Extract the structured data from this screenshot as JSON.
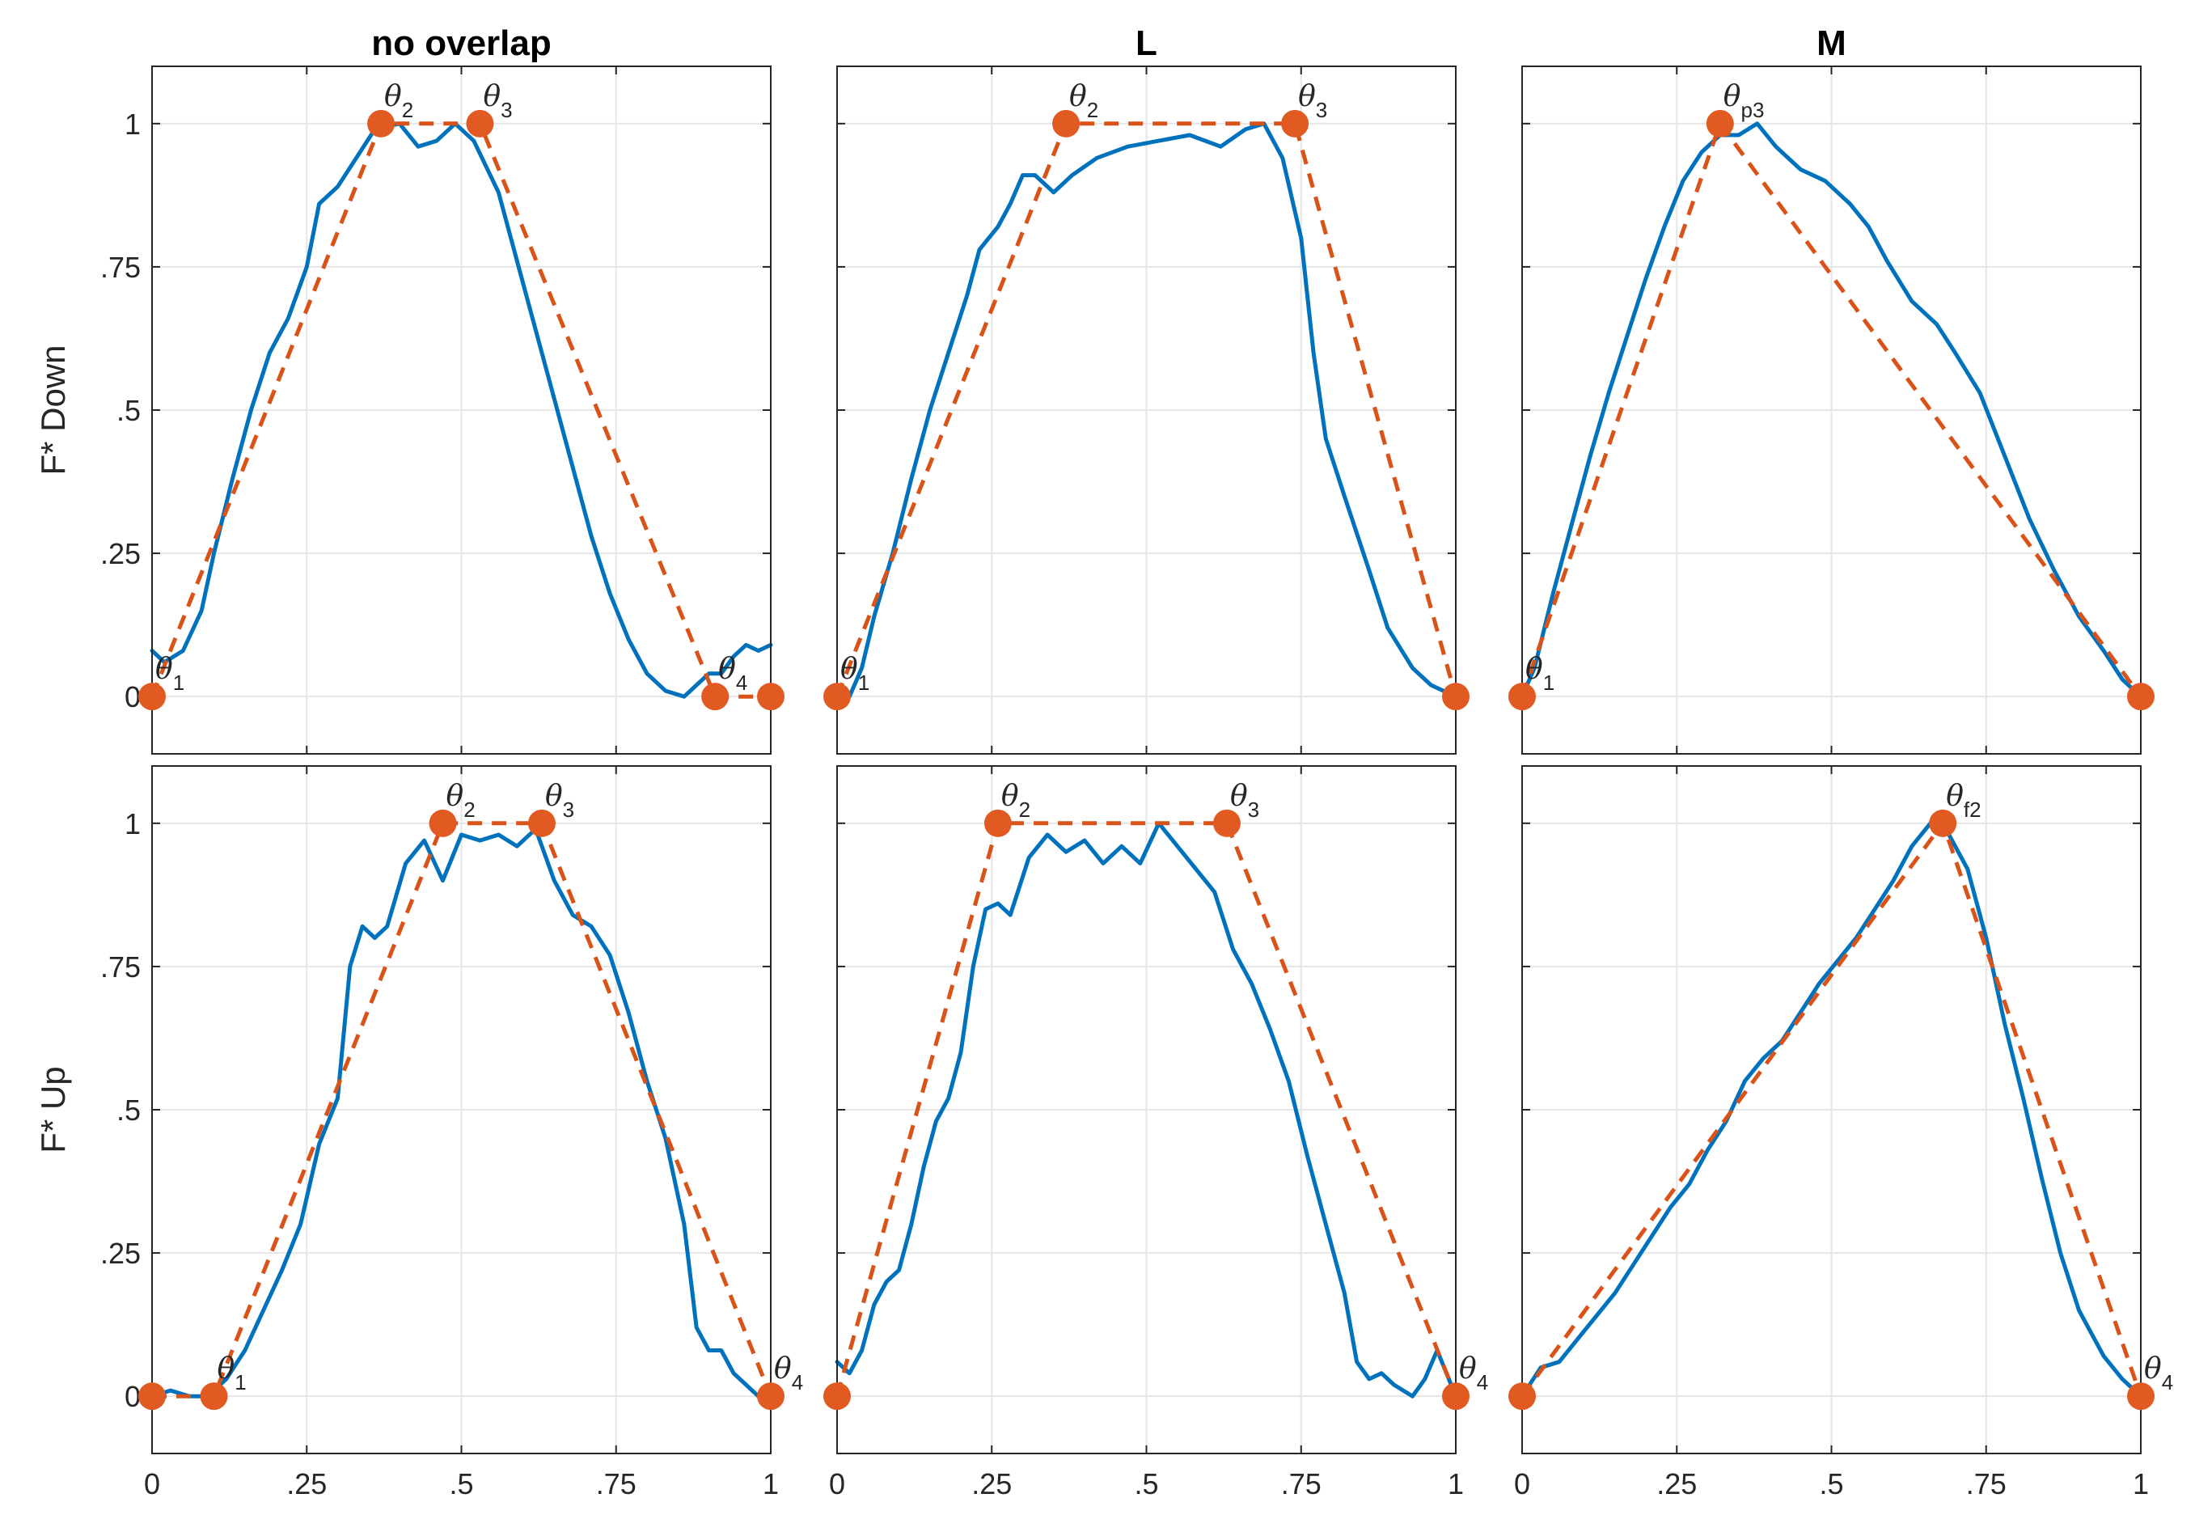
{
  "chart_data": {
    "type": "line",
    "layout": "grid 2 rows x 3 columns",
    "column_titles": [
      "no overlap",
      "L",
      "M"
    ],
    "row_labels": [
      "F* Down",
      "F* Up"
    ],
    "x_ticks": [
      0,
      0.25,
      0.5,
      0.75,
      1
    ],
    "x_tick_labels": [
      "0",
      ".25",
      ".5",
      ".75",
      "1"
    ],
    "y_ticks": [
      0,
      0.25,
      0.5,
      0.75,
      1
    ],
    "y_tick_labels": [
      "0",
      ".25",
      ".5",
      ".75",
      "1"
    ],
    "xlim": [
      0,
      1
    ],
    "ylim": [
      -0.1,
      1.1
    ],
    "grid": true,
    "colors": {
      "empirical": "#0072BD",
      "model": "#D95319",
      "marker": "#E15A21"
    },
    "panels": [
      {
        "row": "F* Down",
        "column": "no overlap",
        "empirical": [
          [
            0,
            0.08
          ],
          [
            0.02,
            0.06
          ],
          [
            0.05,
            0.08
          ],
          [
            0.08,
            0.15
          ],
          [
            0.1,
            0.25
          ],
          [
            0.13,
            0.38
          ],
          [
            0.16,
            0.5
          ],
          [
            0.19,
            0.6
          ],
          [
            0.22,
            0.66
          ],
          [
            0.25,
            0.75
          ],
          [
            0.27,
            0.86
          ],
          [
            0.3,
            0.89
          ],
          [
            0.33,
            0.94
          ],
          [
            0.36,
            0.99
          ],
          [
            0.4,
            1.0
          ],
          [
            0.43,
            0.96
          ],
          [
            0.46,
            0.97
          ],
          [
            0.49,
            1.0
          ],
          [
            0.52,
            0.97
          ],
          [
            0.56,
            0.88
          ],
          [
            0.6,
            0.72
          ],
          [
            0.64,
            0.56
          ],
          [
            0.68,
            0.4
          ],
          [
            0.71,
            0.28
          ],
          [
            0.74,
            0.18
          ],
          [
            0.77,
            0.1
          ],
          [
            0.8,
            0.04
          ],
          [
            0.83,
            0.01
          ],
          [
            0.86,
            0.0
          ],
          [
            0.88,
            0.02
          ],
          [
            0.9,
            0.04
          ],
          [
            0.92,
            0.04
          ],
          [
            0.94,
            0.07
          ],
          [
            0.96,
            0.09
          ],
          [
            0.98,
            0.08
          ],
          [
            1,
            0.09
          ]
        ],
        "model": [
          [
            0,
            0
          ],
          [
            0.37,
            1
          ],
          [
            0.53,
            1
          ],
          [
            0.91,
            0
          ],
          [
            1,
            0
          ]
        ],
        "markers": [
          {
            "x": 0,
            "y": 0,
            "label": "θ",
            "subscript": "1"
          },
          {
            "x": 0.37,
            "y": 1,
            "label": "θ",
            "subscript": "2"
          },
          {
            "x": 0.53,
            "y": 1,
            "label": "θ",
            "subscript": "3"
          },
          {
            "x": 0.91,
            "y": 0,
            "label": "θ",
            "subscript": "4"
          },
          {
            "x": 1,
            "y": 0,
            "label": "",
            "subscript": ""
          }
        ]
      },
      {
        "row": "F* Down",
        "column": "L",
        "empirical": [
          [
            0,
            0.0
          ],
          [
            0.02,
            0.0
          ],
          [
            0.04,
            0.05
          ],
          [
            0.06,
            0.14
          ],
          [
            0.09,
            0.25
          ],
          [
            0.12,
            0.38
          ],
          [
            0.15,
            0.5
          ],
          [
            0.18,
            0.6
          ],
          [
            0.21,
            0.7
          ],
          [
            0.23,
            0.78
          ],
          [
            0.26,
            0.82
          ],
          [
            0.28,
            0.86
          ],
          [
            0.3,
            0.91
          ],
          [
            0.32,
            0.91
          ],
          [
            0.35,
            0.88
          ],
          [
            0.38,
            0.91
          ],
          [
            0.42,
            0.94
          ],
          [
            0.47,
            0.96
          ],
          [
            0.52,
            0.97
          ],
          [
            0.57,
            0.98
          ],
          [
            0.62,
            0.96
          ],
          [
            0.66,
            0.99
          ],
          [
            0.69,
            1.0
          ],
          [
            0.72,
            0.94
          ],
          [
            0.75,
            0.8
          ],
          [
            0.77,
            0.6
          ],
          [
            0.79,
            0.45
          ],
          [
            0.82,
            0.35
          ],
          [
            0.86,
            0.22
          ],
          [
            0.89,
            0.12
          ],
          [
            0.93,
            0.05
          ],
          [
            0.96,
            0.02
          ],
          [
            1,
            0.0
          ]
        ],
        "model": [
          [
            0,
            0
          ],
          [
            0.37,
            1
          ],
          [
            0.74,
            1
          ],
          [
            1,
            0
          ]
        ],
        "markers": [
          {
            "x": 0,
            "y": 0,
            "label": "θ",
            "subscript": "1"
          },
          {
            "x": 0.37,
            "y": 1,
            "label": "θ",
            "subscript": "2"
          },
          {
            "x": 0.74,
            "y": 1,
            "label": "θ",
            "subscript": "3"
          },
          {
            "x": 1,
            "y": 0,
            "label": "",
            "subscript": ""
          }
        ]
      },
      {
        "row": "F* Down",
        "column": "M",
        "empirical": [
          [
            0,
            0.0
          ],
          [
            0.02,
            0.05
          ],
          [
            0.05,
            0.18
          ],
          [
            0.08,
            0.3
          ],
          [
            0.11,
            0.42
          ],
          [
            0.14,
            0.53
          ],
          [
            0.17,
            0.63
          ],
          [
            0.2,
            0.73
          ],
          [
            0.23,
            0.82
          ],
          [
            0.26,
            0.9
          ],
          [
            0.29,
            0.95
          ],
          [
            0.32,
            0.98
          ],
          [
            0.35,
            0.98
          ],
          [
            0.38,
            1.0
          ],
          [
            0.41,
            0.96
          ],
          [
            0.45,
            0.92
          ],
          [
            0.49,
            0.9
          ],
          [
            0.53,
            0.86
          ],
          [
            0.56,
            0.82
          ],
          [
            0.59,
            0.76
          ],
          [
            0.63,
            0.69
          ],
          [
            0.67,
            0.65
          ],
          [
            0.7,
            0.6
          ],
          [
            0.74,
            0.53
          ],
          [
            0.78,
            0.42
          ],
          [
            0.82,
            0.31
          ],
          [
            0.86,
            0.22
          ],
          [
            0.9,
            0.14
          ],
          [
            0.94,
            0.08
          ],
          [
            0.97,
            0.03
          ],
          [
            1,
            0.0
          ]
        ],
        "model": [
          [
            0,
            0
          ],
          [
            0.32,
            1
          ],
          [
            1,
            0
          ]
        ],
        "markers": [
          {
            "x": 0,
            "y": 0,
            "label": "θ",
            "subscript": "1"
          },
          {
            "x": 0.32,
            "y": 1,
            "label": "θ",
            "subscript": "p3"
          },
          {
            "x": 1,
            "y": 0,
            "label": "",
            "subscript": ""
          }
        ]
      },
      {
        "row": "F* Up",
        "column": "no overlap",
        "empirical": [
          [
            0,
            0.0
          ],
          [
            0.03,
            0.01
          ],
          [
            0.06,
            0.0
          ],
          [
            0.09,
            0.0
          ],
          [
            0.12,
            0.03
          ],
          [
            0.15,
            0.08
          ],
          [
            0.18,
            0.15
          ],
          [
            0.21,
            0.22
          ],
          [
            0.24,
            0.3
          ],
          [
            0.27,
            0.44
          ],
          [
            0.3,
            0.52
          ],
          [
            0.32,
            0.75
          ],
          [
            0.34,
            0.82
          ],
          [
            0.36,
            0.8
          ],
          [
            0.38,
            0.82
          ],
          [
            0.41,
            0.93
          ],
          [
            0.44,
            0.97
          ],
          [
            0.47,
            0.9
          ],
          [
            0.5,
            0.98
          ],
          [
            0.53,
            0.97
          ],
          [
            0.56,
            0.98
          ],
          [
            0.59,
            0.96
          ],
          [
            0.62,
            0.99
          ],
          [
            0.65,
            0.9
          ],
          [
            0.68,
            0.84
          ],
          [
            0.71,
            0.82
          ],
          [
            0.74,
            0.77
          ],
          [
            0.77,
            0.67
          ],
          [
            0.8,
            0.55
          ],
          [
            0.83,
            0.45
          ],
          [
            0.86,
            0.3
          ],
          [
            0.88,
            0.12
          ],
          [
            0.9,
            0.08
          ],
          [
            0.92,
            0.08
          ],
          [
            0.94,
            0.04
          ],
          [
            0.96,
            0.02
          ],
          [
            0.98,
            0.0
          ],
          [
            1,
            0.0
          ]
        ],
        "model": [
          [
            0,
            0
          ],
          [
            0.1,
            0
          ],
          [
            0.47,
            1
          ],
          [
            0.63,
            1
          ],
          [
            1,
            0
          ]
        ],
        "markers": [
          {
            "x": 0,
            "y": 0,
            "label": "",
            "subscript": ""
          },
          {
            "x": 0.1,
            "y": 0,
            "label": "θ",
            "subscript": "1"
          },
          {
            "x": 0.47,
            "y": 1,
            "label": "θ",
            "subscript": "2"
          },
          {
            "x": 0.63,
            "y": 1,
            "label": "θ",
            "subscript": "3"
          },
          {
            "x": 1,
            "y": 0,
            "label": "θ",
            "subscript": "4"
          }
        ]
      },
      {
        "row": "F* Up",
        "column": "L",
        "empirical": [
          [
            0,
            0.06
          ],
          [
            0.02,
            0.04
          ],
          [
            0.04,
            0.08
          ],
          [
            0.06,
            0.16
          ],
          [
            0.08,
            0.2
          ],
          [
            0.1,
            0.22
          ],
          [
            0.12,
            0.3
          ],
          [
            0.14,
            0.4
          ],
          [
            0.16,
            0.48
          ],
          [
            0.18,
            0.52
          ],
          [
            0.2,
            0.6
          ],
          [
            0.22,
            0.75
          ],
          [
            0.24,
            0.85
          ],
          [
            0.26,
            0.86
          ],
          [
            0.28,
            0.84
          ],
          [
            0.31,
            0.94
          ],
          [
            0.34,
            0.98
          ],
          [
            0.37,
            0.95
          ],
          [
            0.4,
            0.97
          ],
          [
            0.43,
            0.93
          ],
          [
            0.46,
            0.96
          ],
          [
            0.49,
            0.93
          ],
          [
            0.52,
            1.0
          ],
          [
            0.55,
            0.96
          ],
          [
            0.58,
            0.92
          ],
          [
            0.61,
            0.88
          ],
          [
            0.64,
            0.78
          ],
          [
            0.67,
            0.72
          ],
          [
            0.7,
            0.64
          ],
          [
            0.73,
            0.55
          ],
          [
            0.76,
            0.42
          ],
          [
            0.79,
            0.3
          ],
          [
            0.82,
            0.18
          ],
          [
            0.84,
            0.06
          ],
          [
            0.86,
            0.03
          ],
          [
            0.88,
            0.04
          ],
          [
            0.9,
            0.02
          ],
          [
            0.93,
            0.0
          ],
          [
            0.95,
            0.03
          ],
          [
            0.97,
            0.08
          ],
          [
            1,
            0.0
          ]
        ],
        "model": [
          [
            0,
            0
          ],
          [
            0.26,
            1
          ],
          [
            0.63,
            1
          ],
          [
            1,
            0
          ]
        ],
        "markers": [
          {
            "x": 0,
            "y": 0,
            "label": "",
            "subscript": ""
          },
          {
            "x": 0.26,
            "y": 1,
            "label": "θ",
            "subscript": "2"
          },
          {
            "x": 0.63,
            "y": 1,
            "label": "θ",
            "subscript": "3"
          },
          {
            "x": 1,
            "y": 0,
            "label": "θ",
            "subscript": "4"
          }
        ]
      },
      {
        "row": "F* Up",
        "column": "M",
        "empirical": [
          [
            0,
            0.0
          ],
          [
            0.03,
            0.05
          ],
          [
            0.06,
            0.06
          ],
          [
            0.09,
            0.1
          ],
          [
            0.12,
            0.14
          ],
          [
            0.15,
            0.18
          ],
          [
            0.18,
            0.23
          ],
          [
            0.21,
            0.28
          ],
          [
            0.24,
            0.33
          ],
          [
            0.27,
            0.37
          ],
          [
            0.3,
            0.43
          ],
          [
            0.33,
            0.48
          ],
          [
            0.36,
            0.55
          ],
          [
            0.39,
            0.59
          ],
          [
            0.42,
            0.62
          ],
          [
            0.45,
            0.67
          ],
          [
            0.48,
            0.72
          ],
          [
            0.51,
            0.76
          ],
          [
            0.54,
            0.8
          ],
          [
            0.57,
            0.85
          ],
          [
            0.6,
            0.9
          ],
          [
            0.63,
            0.96
          ],
          [
            0.66,
            1.0
          ],
          [
            0.69,
            0.98
          ],
          [
            0.72,
            0.92
          ],
          [
            0.75,
            0.8
          ],
          [
            0.78,
            0.65
          ],
          [
            0.81,
            0.52
          ],
          [
            0.84,
            0.38
          ],
          [
            0.87,
            0.25
          ],
          [
            0.9,
            0.15
          ],
          [
            0.94,
            0.07
          ],
          [
            0.97,
            0.03
          ],
          [
            1,
            0.0
          ]
        ],
        "model": [
          [
            0,
            0
          ],
          [
            0.68,
            1
          ],
          [
            1,
            0
          ]
        ],
        "markers": [
          {
            "x": 0,
            "y": 0,
            "label": "",
            "subscript": ""
          },
          {
            "x": 0.68,
            "y": 1,
            "label": "θ",
            "subscript": "f2"
          },
          {
            "x": 1,
            "y": 0,
            "label": "θ",
            "subscript": "4"
          }
        ]
      }
    ]
  }
}
